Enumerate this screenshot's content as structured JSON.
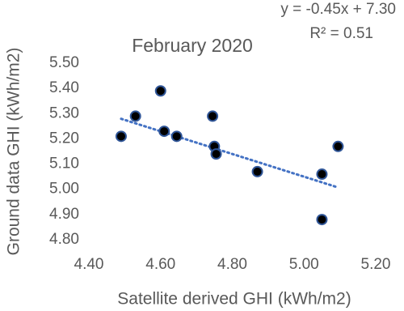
{
  "chart_data": {
    "type": "scatter",
    "title": "February 2020",
    "x_label": "Satellite derived GHI (kWh/m2)",
    "y_label": "Ground data GHI (kWh/m2)",
    "annotations": [
      "y = -0.45x + 7.30",
      "R² = 0.51"
    ],
    "trendline": {
      "slope": -0.45,
      "intercept": 7.3,
      "color": "#4472c4"
    },
    "series": [
      {
        "color": "#000000",
        "edge_color": "#2f5597",
        "x": [
          4.49,
          4.53,
          4.6,
          4.61,
          4.645,
          4.745,
          4.75,
          4.755,
          4.87,
          5.05,
          5.05,
          5.095
        ],
        "values": [
          5.21,
          5.29,
          5.39,
          5.23,
          5.21,
          5.29,
          5.17,
          5.14,
          5.07,
          5.06,
          4.88,
          5.17
        ]
      }
    ],
    "xlim": [
      4.4,
      5.2
    ],
    "xticks": [
      {
        "value": 4.4,
        "label": "4.40"
      },
      {
        "value": 4.6,
        "label": "4.60"
      },
      {
        "value": 4.8,
        "label": "4.80"
      },
      {
        "value": 5.0,
        "label": "5.00"
      },
      {
        "value": 5.2,
        "label": "5.20"
      }
    ],
    "ylim": [
      4.8,
      5.5
    ],
    "yticks": [
      {
        "value": 4.8,
        "label": "4.80"
      },
      {
        "value": 4.9,
        "label": "4.90"
      },
      {
        "value": 5.0,
        "label": "5.00"
      },
      {
        "value": 5.1,
        "label": "5.10"
      },
      {
        "value": 5.2,
        "label": "5.20"
      },
      {
        "value": 5.3,
        "label": "5.30"
      },
      {
        "value": 5.4,
        "label": "5.40"
      },
      {
        "value": 5.5,
        "label": "5.50"
      }
    ],
    "grid": false
  }
}
